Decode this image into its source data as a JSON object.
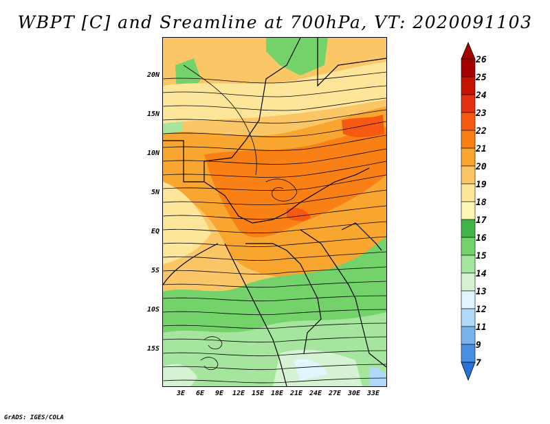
{
  "title": "WBPT [C] and Sreamline at 700hPa, VT: 2020091103",
  "credit": "GrADS: IGES/COLA",
  "lat_labels": [
    "20N",
    "15N",
    "10N",
    "5N",
    "EQ",
    "5S",
    "10S",
    "15S"
  ],
  "lon_labels": [
    "3E",
    "6E",
    "9E",
    "12E",
    "15E",
    "18E",
    "21E",
    "24E",
    "27E",
    "30E",
    "33E"
  ],
  "colorbar": {
    "levels": [
      "26",
      "25",
      "24",
      "23",
      "22",
      "21",
      "20",
      "19",
      "18",
      "17",
      "16",
      "15",
      "14",
      "13",
      "12",
      "11",
      "9",
      "7"
    ],
    "colors": [
      "#e0e0e0",
      "#a50000",
      "#c41400",
      "#e23010",
      "#f65a12",
      "#f98015",
      "#f9a630",
      "#fbc766",
      "#fde69a",
      "#fbf6b5",
      "#42b54a",
      "#73d26a",
      "#a6e59e",
      "#d5f3d3",
      "#dff5ff",
      "#b0d8f8",
      "#7ab3ee",
      "#4990e2",
      "#2674da",
      "#1460d0"
    ]
  }
}
